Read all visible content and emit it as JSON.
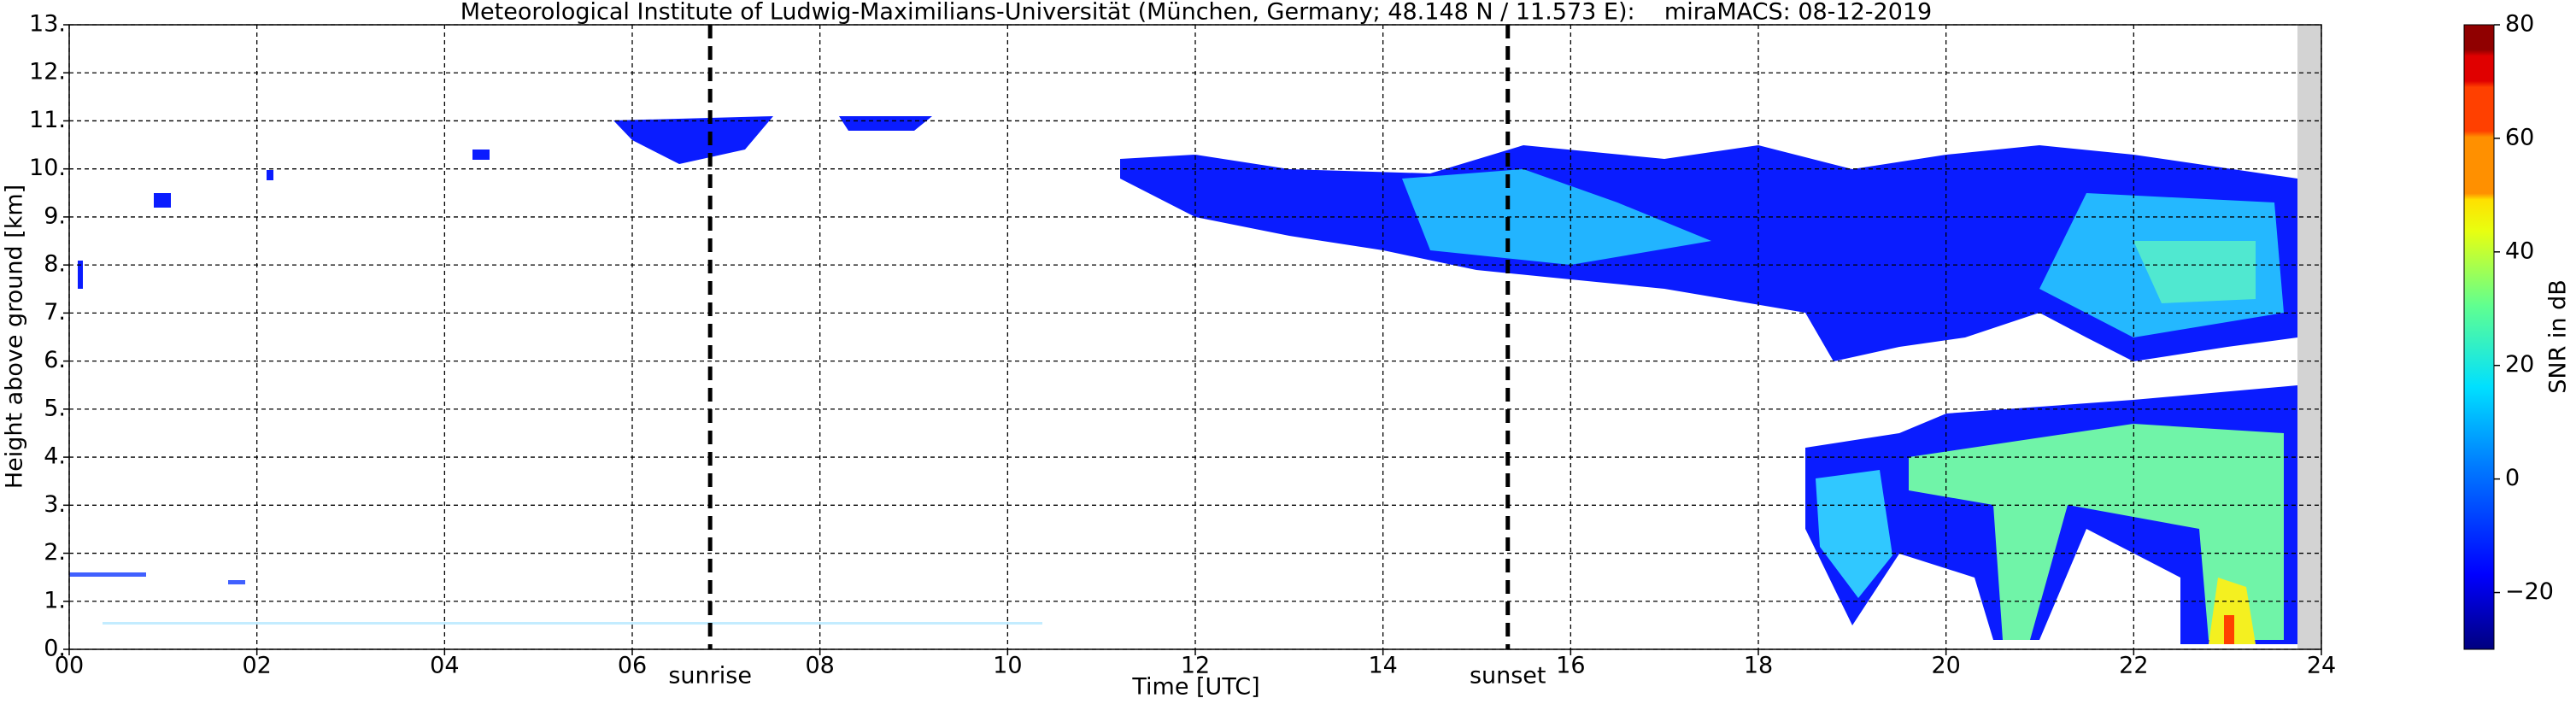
{
  "chart_data": {
    "type": "heatmap",
    "title": "Meteorological Institute of Ludwig-Maximilians-Universität (München, Germany; 48.148 N / 11.573 E):    miraMACS: 08-12-2019",
    "xlabel": "Time [UTC]",
    "ylabel": "Height above ground [km]",
    "xlim": [
      0,
      24
    ],
    "ylim": [
      0,
      13
    ],
    "xticks": [
      {
        "value": 0,
        "label": "00"
      },
      {
        "value": 2,
        "label": "02"
      },
      {
        "value": 4,
        "label": "04"
      },
      {
        "value": 6,
        "label": "06"
      },
      {
        "value": 8,
        "label": "08"
      },
      10,
      12,
      14,
      16,
      18,
      20,
      22,
      24
    ],
    "yticks": [
      {
        "value": 0,
        "label": "0."
      },
      {
        "value": 1,
        "label": "1."
      },
      {
        "value": 2,
        "label": "2."
      },
      {
        "value": 3,
        "label": "3."
      },
      {
        "value": 4,
        "label": "4."
      },
      {
        "value": 5,
        "label": "5."
      },
      {
        "value": 6,
        "label": "6."
      },
      {
        "value": 7,
        "label": "7."
      },
      {
        "value": 8,
        "label": "8."
      },
      {
        "value": 9,
        "label": "9."
      },
      {
        "value": 10,
        "label": "10."
      },
      {
        "value": 11,
        "label": "11."
      },
      {
        "value": 12,
        "label": "12."
      },
      {
        "value": 13,
        "label": "13."
      }
    ],
    "grid": true,
    "annotations": [
      {
        "label": "sunrise",
        "x": 6.83
      },
      {
        "label": "sunset",
        "x": 15.33
      }
    ],
    "colorbar": {
      "label": "SNR in dB",
      "lim": [
        -30,
        80
      ],
      "ticks": [
        80,
        60,
        40,
        20,
        0,
        {
          "value": -20,
          "label": "−20"
        }
      ]
    }
  }
}
